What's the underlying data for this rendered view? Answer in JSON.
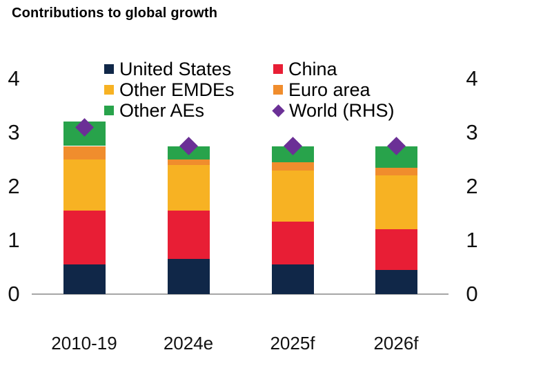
{
  "chart_data": {
    "type": "bar",
    "subtype": "stacked-bars-with-diamond-markers",
    "title": "Contributions to global growth",
    "categories": [
      "2010-19",
      "2024e",
      "2025f",
      "2026f"
    ],
    "series": [
      {
        "name": "United States",
        "color": "#102748",
        "values": [
          0.55,
          0.65,
          0.55,
          0.45
        ]
      },
      {
        "name": "China",
        "color": "#E81E35",
        "values": [
          1.0,
          0.9,
          0.8,
          0.75
        ]
      },
      {
        "name": "Other EMDEs",
        "color": "#F7B223",
        "values": [
          0.95,
          0.85,
          0.95,
          1.0
        ]
      },
      {
        "name": "Euro area",
        "color": "#F08D2D",
        "values": [
          0.25,
          0.1,
          0.15,
          0.15
        ]
      },
      {
        "name": "Other AEs",
        "color": "#28A34B",
        "values": [
          0.45,
          0.25,
          0.3,
          0.4
        ]
      }
    ],
    "marker_series": {
      "name": "World (RHS)",
      "color": "#6B3096",
      "shape": "diamond",
      "values": [
        3.1,
        2.75,
        2.75,
        2.75
      ]
    },
    "stack_totals": [
      3.2,
      2.75,
      2.75,
      2.75
    ],
    "left_axis": {
      "range": [
        0,
        4
      ],
      "ticks": [
        "0",
        "1",
        "2",
        "3",
        "4"
      ]
    },
    "right_axis": {
      "range": [
        0,
        4
      ],
      "ticks": [
        "0",
        "1",
        "2",
        "3",
        "4"
      ]
    },
    "grid": false,
    "axis_line_color": "#A6A6A6",
    "legend": {
      "position": "top-center",
      "columns": 2,
      "entries": [
        {
          "label": "United States",
          "color": "#102748",
          "shape": "square"
        },
        {
          "label": "China",
          "color": "#E81E35",
          "shape": "square"
        },
        {
          "label": "Other EMDEs",
          "color": "#F7B223",
          "shape": "square"
        },
        {
          "label": "Euro area",
          "color": "#F08D2D",
          "shape": "square"
        },
        {
          "label": "Other AEs",
          "color": "#28A34B",
          "shape": "square"
        },
        {
          "label": "World (RHS)",
          "color": "#6B3096",
          "shape": "diamond"
        }
      ]
    }
  }
}
